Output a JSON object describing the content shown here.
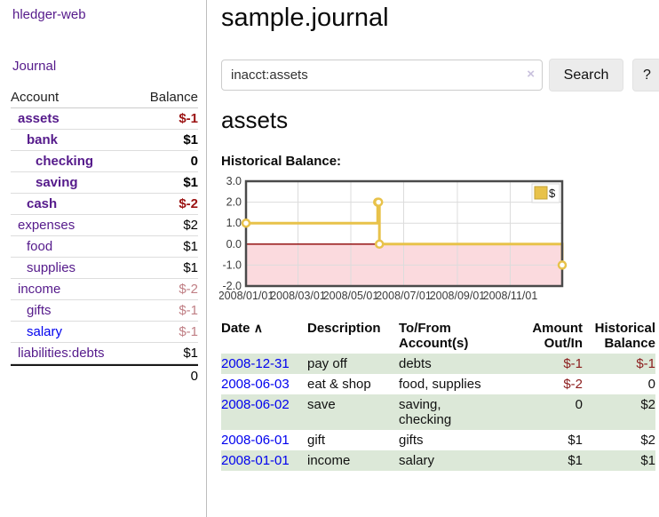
{
  "app": {
    "brand": "hledger-web"
  },
  "colors": {
    "purple_link": "#551a8b",
    "blue_link": "#0000ee",
    "negative_strong": "#9b1313",
    "negative_muted": "#c07f85",
    "row_green": "#dce8d8",
    "chart_line": "#e8c24a",
    "chart_negative_region": "#fbdade",
    "chart_zero_line": "#8b0000"
  },
  "sidebar": {
    "nav": {
      "journal_label": "Journal"
    },
    "accounts": {
      "headers": [
        "Account",
        "Balance"
      ],
      "rows": [
        {
          "name": "assets",
          "balance": "$-1",
          "level": 1,
          "bold": true,
          "name_color": "purple",
          "balance_color": "red"
        },
        {
          "name": "bank",
          "balance": "$1",
          "level": 2,
          "bold": true,
          "name_color": "purple",
          "balance_color": "black"
        },
        {
          "name": "checking",
          "balance": "0",
          "level": 3,
          "bold": true,
          "name_color": "purple",
          "balance_color": "black"
        },
        {
          "name": "saving",
          "balance": "$1",
          "level": 3,
          "bold": true,
          "name_color": "purple",
          "balance_color": "black"
        },
        {
          "name": "cash",
          "balance": "$-2",
          "level": 2,
          "bold": true,
          "name_color": "purple",
          "balance_color": "red"
        },
        {
          "name": "expenses",
          "balance": "$2",
          "level": 1,
          "bold": false,
          "name_color": "purple",
          "balance_color": "black"
        },
        {
          "name": "food",
          "balance": "$1",
          "level": 2,
          "bold": false,
          "name_color": "purple",
          "balance_color": "black"
        },
        {
          "name": "supplies",
          "balance": "$1",
          "level": 2,
          "bold": false,
          "name_color": "purple",
          "balance_color": "black"
        },
        {
          "name": "income",
          "balance": "$-2",
          "level": 1,
          "bold": false,
          "name_color": "purple",
          "balance_color": "rosy"
        },
        {
          "name": "gifts",
          "balance": "$-1",
          "level": 2,
          "bold": false,
          "name_color": "purple",
          "balance_color": "rosy"
        },
        {
          "name": "salary",
          "balance": "$-1",
          "level": 2,
          "bold": false,
          "name_color": "blue",
          "balance_color": "rosy"
        },
        {
          "name": "liabilities:debts",
          "balance": "$1",
          "level": 1,
          "bold": false,
          "name_color": "purple",
          "balance_color": "black"
        }
      ],
      "total": "0"
    }
  },
  "main": {
    "title": "sample.journal",
    "search": {
      "value": "inacct:assets",
      "clear_icon": "×",
      "button_label": "Search",
      "help_label": "?"
    },
    "account_heading": "assets",
    "chart_heading": "Historical Balance:",
    "register": {
      "headers": [
        "Date",
        "Description",
        "To/From Account(s)",
        "Amount Out/In",
        "Historical Balance"
      ],
      "sort_icon": "∧",
      "rows": [
        {
          "date": "2008-12-31",
          "description": "pay off",
          "accounts": [
            "debts"
          ],
          "amount": "$-1",
          "balance": "$-1"
        },
        {
          "date": "2008-06-03",
          "description": "eat & shop",
          "accounts": [
            "food, supplies"
          ],
          "amount": "$-2",
          "balance": "0"
        },
        {
          "date": "2008-06-02",
          "description": "save",
          "accounts": [
            "saving,",
            "checking"
          ],
          "amount": "0",
          "balance": "$2"
        },
        {
          "date": "2008-06-01",
          "description": "gift",
          "accounts": [
            "gifts"
          ],
          "amount": "$1",
          "balance": "$2"
        },
        {
          "date": "2008-01-01",
          "description": "income",
          "accounts": [
            "salary"
          ],
          "amount": "$1",
          "balance": "$1"
        }
      ]
    }
  },
  "chart_data": {
    "type": "line",
    "step": true,
    "title": "Historical Balance:",
    "series": [
      {
        "name": "$",
        "points": [
          [
            "2008-01-01",
            1
          ],
          [
            "2008-06-01",
            2
          ],
          [
            "2008-06-02",
            2
          ],
          [
            "2008-06-03",
            0
          ],
          [
            "2008-12-31",
            -1
          ]
        ]
      }
    ],
    "xlim": [
      "2008-01-01",
      "2008-12-31"
    ],
    "ylim": [
      -2,
      3
    ],
    "x_ticks": [
      "2008/01/01",
      "2008/03/01",
      "2008/05/01",
      "2008/07/01",
      "2008/09/01",
      "2008/11/01"
    ],
    "y_ticks": [
      "3.0",
      "2.0",
      "1.0",
      "0.0",
      "-1.0",
      "-2.0"
    ],
    "grid": true,
    "legend": {
      "label": "$",
      "position": "top-right"
    },
    "negative_region": true
  }
}
